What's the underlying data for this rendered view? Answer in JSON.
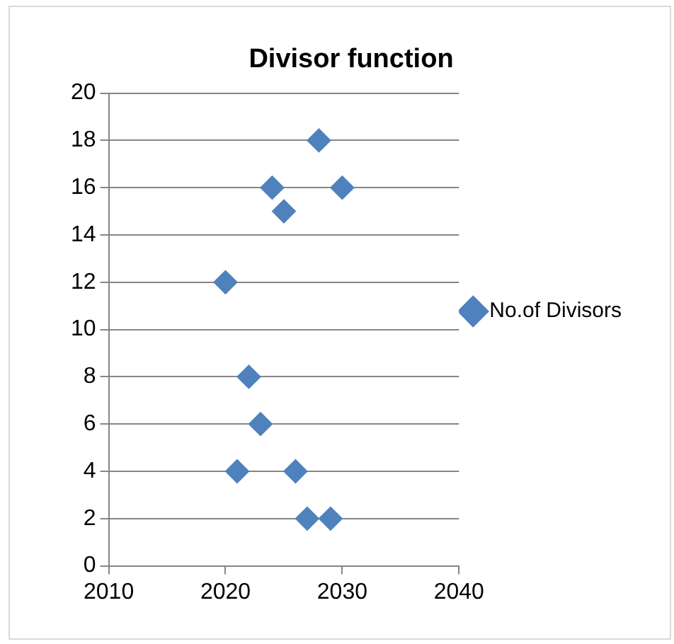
{
  "chart_data": {
    "type": "scatter",
    "title": "Divisor function",
    "x": [
      2020,
      2021,
      2022,
      2023,
      2024,
      2025,
      2026,
      2027,
      2028,
      2029,
      2030
    ],
    "series": [
      {
        "name": "No.of Divisors",
        "color": "#4f81bd",
        "values": [
          12,
          4,
          8,
          6,
          16,
          15,
          4,
          2,
          18,
          2,
          16
        ]
      }
    ],
    "xlim": [
      2010,
      2040
    ],
    "xticks": [
      2010,
      2020,
      2030,
      2040
    ],
    "ylim": [
      0,
      20
    ],
    "yticks": [
      0,
      2,
      4,
      6,
      8,
      10,
      12,
      14,
      16,
      18,
      20
    ],
    "grid": "y",
    "legend": "right",
    "marker": "diamond"
  }
}
